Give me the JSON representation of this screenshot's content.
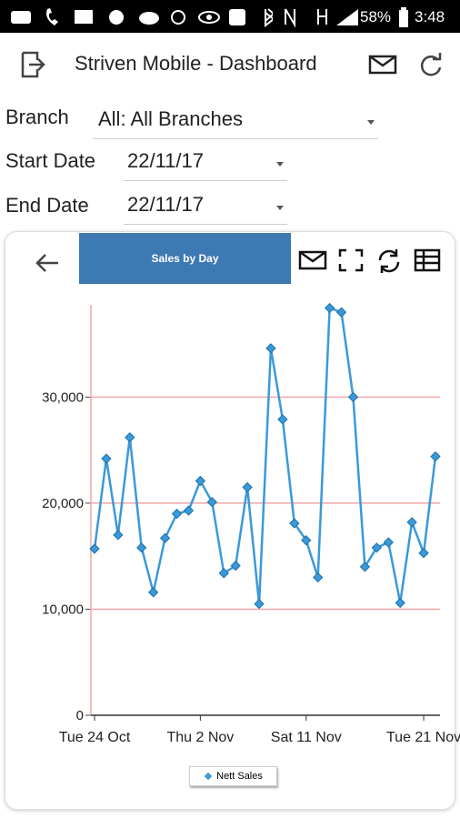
{
  "status_bar": {
    "battery": "58%",
    "time": "3:48"
  },
  "header": {
    "title": "Striven Mobile - Dashboard"
  },
  "filters": [
    {
      "label": "Branch",
      "value": "All: All Branches"
    },
    {
      "label": "Start Date",
      "value": "22/11/17"
    },
    {
      "label": "End Date",
      "value": "22/11/17"
    }
  ],
  "chart_data": {
    "type": "line",
    "title": "Sales by Day",
    "categories": [
      "Tue 24 Oct",
      null,
      null,
      null,
      null,
      null,
      null,
      null,
      null,
      "Thu 2 Nov",
      null,
      null,
      null,
      null,
      null,
      null,
      null,
      null,
      "Sat 11 Nov",
      null,
      null,
      null,
      null,
      null,
      null,
      null,
      null,
      null,
      "Tue 21 Nov",
      null
    ],
    "series": [
      {
        "name": "Nett Sales",
        "color": "#3a9ad9",
        "values": [
          15700,
          24200,
          17000,
          26200,
          15800,
          11600,
          16700,
          19000,
          19300,
          22100,
          20100,
          13400,
          14100,
          21500,
          10500,
          34600,
          27900,
          18100,
          16500,
          13000,
          38400,
          38000,
          30000,
          14000,
          15800,
          16300,
          10600,
          18200,
          15300,
          24400
        ]
      }
    ],
    "ylim": [
      0,
      38700
    ],
    "yticks": [
      0,
      {
        "value": 10000,
        "label": "10,000"
      },
      {
        "value": 20000,
        "label": "20,000"
      },
      {
        "value": 30000,
        "label": "30,000"
      }
    ],
    "grid": true,
    "grid_color": "#f2a6a6"
  }
}
